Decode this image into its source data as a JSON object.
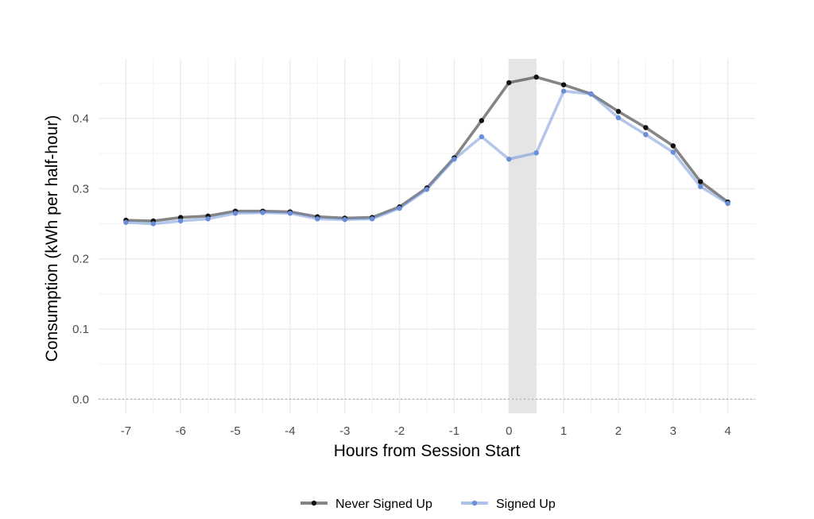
{
  "chart_data": {
    "type": "line",
    "xlabel": "Hours from Session Start",
    "ylabel": "Consumption (kWh per half-hour)",
    "xlim": [
      -7.5,
      4.5
    ],
    "ylim": [
      -0.02,
      0.485
    ],
    "x_ticks": [
      -7,
      -6,
      -5,
      -4,
      -3,
      -2,
      -1,
      0,
      1,
      2,
      3,
      4
    ],
    "x_tick_labels": [
      "-7",
      "-6",
      "-5",
      "-4",
      "-3",
      "-2",
      "-1",
      "0",
      "1",
      "2",
      "3",
      "4"
    ],
    "y_ticks": [
      0.0,
      0.1,
      0.2,
      0.3,
      0.4
    ],
    "y_tick_labels": [
      "0.0",
      "0.1",
      "0.2",
      "0.3",
      "0.4"
    ],
    "grid": true,
    "reference_line_y": 0.0,
    "shaded_region_x": [
      0,
      0.5
    ],
    "shaded_color": "#e5e5e5",
    "legend_position": "bottom",
    "x": [
      -7,
      -6.5,
      -6,
      -5.5,
      -5,
      -4.5,
      -4,
      -3.5,
      -3,
      -2.5,
      -2,
      -1.5,
      -1,
      -0.5,
      0,
      0.5,
      1,
      1.5,
      2,
      2.5,
      3,
      3.5,
      4
    ],
    "series": [
      {
        "name": "Never Signed Up",
        "color": "#333333",
        "values": [
          0.255,
          0.254,
          0.259,
          0.261,
          0.268,
          0.268,
          0.267,
          0.26,
          0.258,
          0.259,
          0.274,
          0.301,
          0.344,
          0.397,
          0.451,
          0.459,
          0.448,
          0.435,
          0.41,
          0.387,
          0.361,
          0.31,
          0.281
        ]
      },
      {
        "name": "Signed Up",
        "color": "#6a8fd8",
        "values": [
          0.252,
          0.25,
          0.254,
          0.257,
          0.265,
          0.266,
          0.265,
          0.257,
          0.256,
          0.257,
          0.272,
          0.299,
          0.342,
          0.374,
          0.342,
          0.351,
          0.439,
          0.435,
          0.401,
          0.377,
          0.352,
          0.303,
          0.279
        ]
      }
    ]
  }
}
